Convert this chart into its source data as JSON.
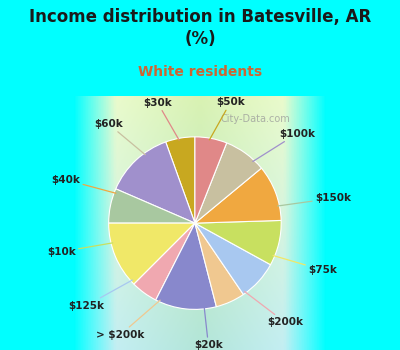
{
  "title": "Income distribution in Batesville, AR\n(%)",
  "subtitle": "White residents",
  "title_color": "#1a1a1a",
  "subtitle_color": "#cc6633",
  "background_cyan": "#00ffff",
  "watermark": "City-Data.com",
  "labels": [
    "$50k",
    "$100k",
    "$150k",
    "$75k",
    "$200k",
    "$20k",
    "> $200k",
    "$125k",
    "$10k",
    "$40k",
    "$60k",
    "$30k"
  ],
  "values": [
    5.5,
    13.0,
    6.5,
    12.5,
    5.0,
    11.5,
    5.5,
    7.5,
    8.5,
    10.5,
    8.0,
    6.0
  ],
  "colors": [
    "#c8a820",
    "#a090cc",
    "#a8c8a0",
    "#f0e868",
    "#f0a8b0",
    "#8888cc",
    "#f0c890",
    "#a8c8f0",
    "#c8e060",
    "#f0a840",
    "#c8c0a0",
    "#e08888"
  ],
  "label_fontsize": 7.5,
  "title_fontsize": 12
}
